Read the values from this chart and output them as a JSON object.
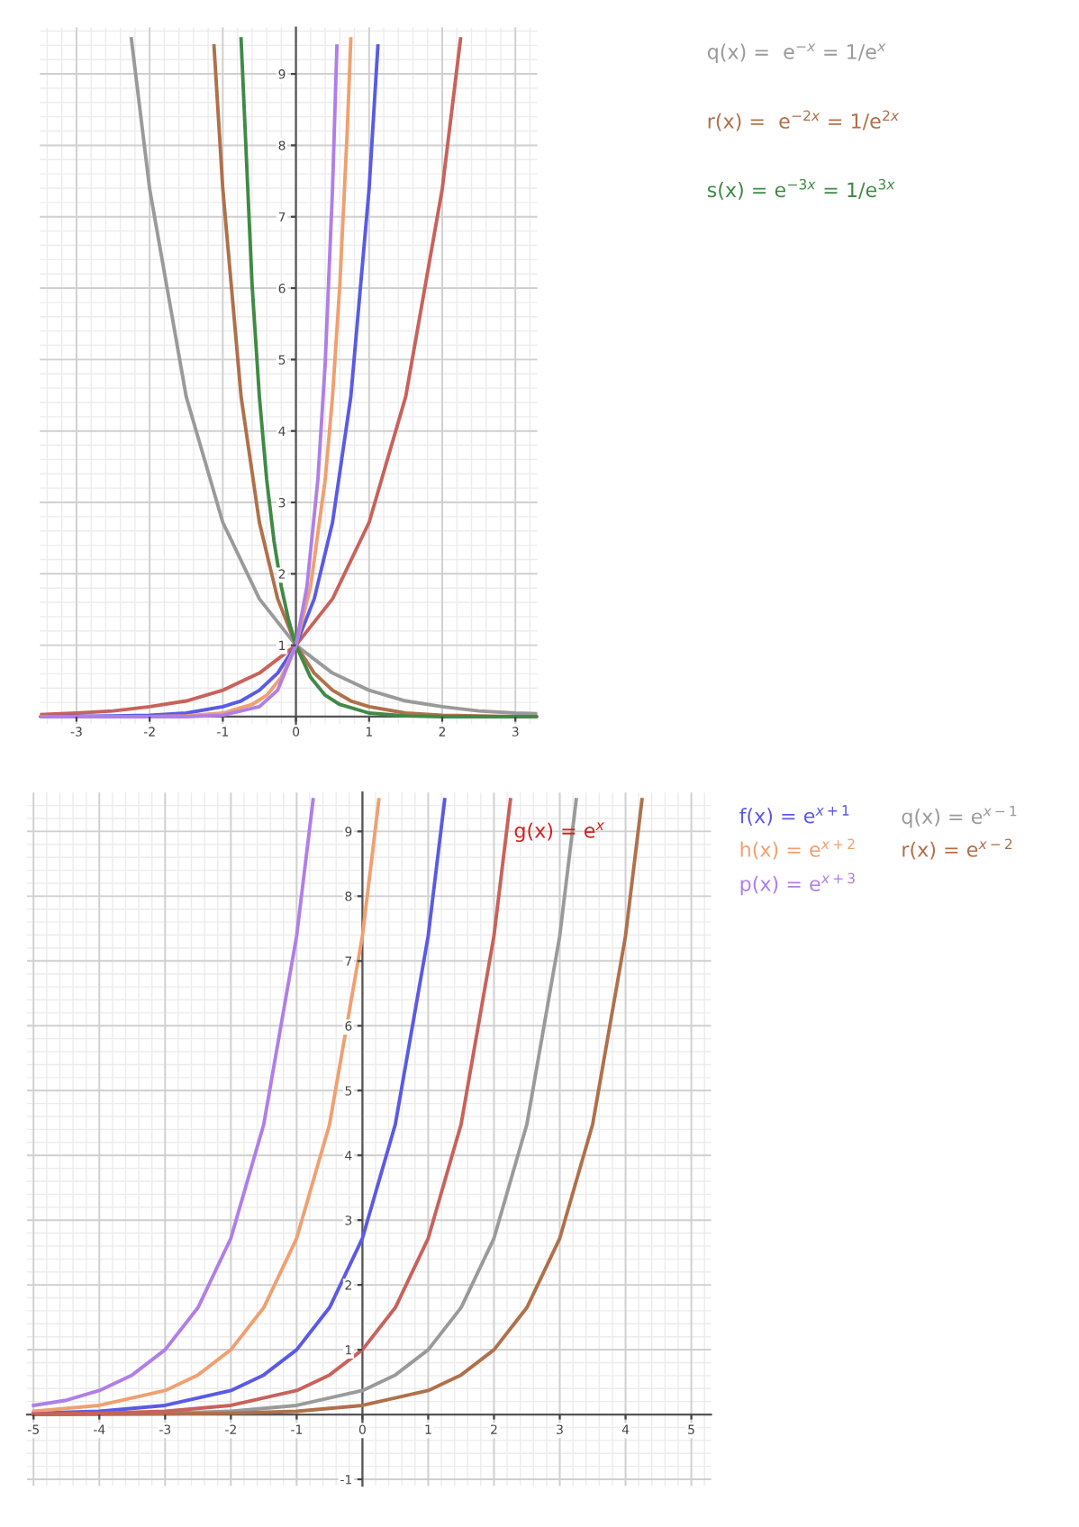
{
  "chart_data": [
    {
      "type": "line",
      "xlim": [
        -3.5,
        3.3
      ],
      "ylim": [
        -0.1,
        9.65
      ],
      "xticks": [
        -3,
        -2,
        -1,
        0,
        1,
        2,
        3
      ],
      "yticks": [
        1,
        2,
        3,
        4,
        5,
        6,
        7,
        8,
        9
      ],
      "grid": true,
      "legend": false,
      "series": [
        {
          "color": "#c8625a",
          "x": [
            -3.5,
            -3,
            -2.5,
            -2,
            -1.5,
            -1,
            -0.5,
            0,
            0.5,
            1,
            1.5,
            2,
            2.25
          ],
          "values": [
            0.03,
            0.05,
            0.08,
            0.14,
            0.22,
            0.37,
            0.61,
            1,
            1.65,
            2.72,
            4.48,
            7.39,
            9.49
          ]
        },
        {
          "name": "q(x) =  e$^{−x}$ = 1/e$^{x}$",
          "color": "#9a9a9a",
          "x": [
            -2.25,
            -2,
            -1.5,
            -1,
            -0.5,
            0,
            0.5,
            1,
            1.5,
            2,
            2.5,
            3,
            3.3
          ],
          "values": [
            9.49,
            7.39,
            4.48,
            2.72,
            1.65,
            1,
            0.61,
            0.37,
            0.22,
            0.14,
            0.08,
            0.05,
            0.04
          ]
        },
        {
          "name": "r(x) =  e$^{−2x}$ = 1/e$^{2x}$",
          "color": "#b0704a",
          "x": [
            -1.12,
            -1,
            -0.75,
            -0.5,
            -0.25,
            0,
            0.25,
            0.5,
            0.75,
            1,
            1.5,
            2,
            2.5,
            3,
            3.3
          ],
          "values": [
            9.39,
            7.39,
            4.48,
            2.72,
            1.65,
            1,
            0.61,
            0.37,
            0.22,
            0.14,
            0.05,
            0.02,
            0.01,
            0,
            0
          ]
        },
        {
          "name": "s(x) = e$^{−3x}$ = 1/e$^{3x}$",
          "color": "#3f8a46",
          "x": [
            -0.75,
            -0.6,
            -0.5,
            -0.4,
            -0.3,
            -0.2,
            -0.1,
            0,
            0.2,
            0.4,
            0.6,
            1,
            1.5,
            2,
            3.3
          ],
          "values": [
            9.49,
            6.05,
            4.48,
            3.32,
            2.46,
            1.82,
            1.35,
            1,
            0.55,
            0.3,
            0.17,
            0.05,
            0.01,
            0,
            0
          ]
        },
        {
          "color": "#5a5ae6",
          "x": [
            -3.5,
            -2.5,
            -2,
            -1.5,
            -1,
            -0.75,
            -0.5,
            -0.25,
            0,
            0.25,
            0.5,
            0.75,
            1,
            1.12
          ],
          "values": [
            0,
            0.01,
            0.02,
            0.05,
            0.14,
            0.22,
            0.37,
            0.61,
            1,
            1.65,
            2.72,
            4.48,
            7.39,
            9.39
          ]
        },
        {
          "color": "#f0a070",
          "x": [
            -3.5,
            -2,
            -1.5,
            -1,
            -0.6,
            -0.4,
            -0.2,
            0,
            0.2,
            0.4,
            0.5,
            0.6,
            0.7,
            0.75
          ],
          "values": [
            0,
            0,
            0.01,
            0.05,
            0.17,
            0.3,
            0.55,
            1,
            1.82,
            3.32,
            4.48,
            6.05,
            8.17,
            9.49
          ]
        },
        {
          "color": "#b07ee8",
          "x": [
            -3.5,
            -1.5,
            -1,
            -0.5,
            -0.25,
            0,
            0.15,
            0.3,
            0.4,
            0.5,
            0.56
          ],
          "values": [
            0,
            0,
            0.02,
            0.14,
            0.37,
            1,
            1.82,
            3.32,
            4.95,
            7.39,
            9.39
          ]
        }
      ]
    },
    {
      "type": "line",
      "xlim": [
        -5.1,
        5.3
      ],
      "ylim": [
        -1.1,
        9.6
      ],
      "xticks": [
        -5,
        -4,
        -3,
        -2,
        -1,
        0,
        1,
        2,
        3,
        4,
        5
      ],
      "yticks": [
        -1,
        1,
        2,
        3,
        4,
        5,
        6,
        7,
        8,
        9
      ],
      "grid": true,
      "legend": false,
      "annotations": [
        {
          "text": "g(x) = e$^{x}$",
          "x": 2.3,
          "y": 8.9
        }
      ],
      "series": [
        {
          "name": "f(x) = e$^{x+1}$",
          "color": "#5a5ae6",
          "x": [
            -5,
            -4,
            -3,
            -2,
            -1.5,
            -1,
            -0.5,
            0,
            0.5,
            1,
            1.25
          ],
          "values": [
            0.02,
            0.05,
            0.14,
            0.37,
            0.61,
            1,
            1.65,
            2.72,
            4.48,
            7.39,
            9.49
          ]
        },
        {
          "name": "h(x) = e$^{x+2}$",
          "color": "#f0a070",
          "x": [
            -5,
            -4,
            -3,
            -2.5,
            -2,
            -1.5,
            -1,
            -0.5,
            0,
            0.25
          ],
          "values": [
            0.05,
            0.14,
            0.37,
            0.61,
            1,
            1.65,
            2.72,
            4.48,
            7.39,
            9.49
          ]
        },
        {
          "name": "p(x) = e$^{x+3}$",
          "color": "#b07ee8",
          "x": [
            -5,
            -4.5,
            -4,
            -3.5,
            -3,
            -2.5,
            -2,
            -1.5,
            -1,
            -0.75
          ],
          "values": [
            0.14,
            0.22,
            0.37,
            0.61,
            1,
            1.65,
            2.72,
            4.48,
            7.39,
            9.49
          ]
        },
        {
          "name": "q(x) = e$^{x−1}$",
          "color": "#9a9a9a",
          "x": [
            -5,
            -3,
            -2,
            -1,
            0,
            0.5,
            1,
            1.5,
            2,
            2.5,
            3,
            3.25
          ],
          "values": [
            0,
            0.02,
            0.05,
            0.14,
            0.37,
            0.61,
            1,
            1.65,
            2.72,
            4.48,
            7.39,
            9.49
          ]
        },
        {
          "name": "r(x) = e$^{x−2}$",
          "color": "#b0704a",
          "x": [
            -5,
            -3,
            -2,
            -1,
            0,
            1,
            1.5,
            2,
            2.5,
            3,
            3.5,
            4,
            4.25
          ],
          "values": [
            0,
            0.01,
            0.02,
            0.05,
            0.14,
            0.37,
            0.61,
            1,
            1.65,
            2.72,
            4.48,
            7.39,
            9.49
          ]
        },
        {
          "color": "#c8625a",
          "x": [
            -5,
            -4,
            -3,
            -2,
            -1,
            -0.5,
            0,
            0.5,
            1,
            1.5,
            2,
            2.25
          ],
          "values": [
            0.01,
            0.02,
            0.05,
            0.14,
            0.37,
            0.61,
            1,
            1.65,
            2.72,
            4.48,
            7.39,
            9.49
          ]
        }
      ]
    }
  ]
}
